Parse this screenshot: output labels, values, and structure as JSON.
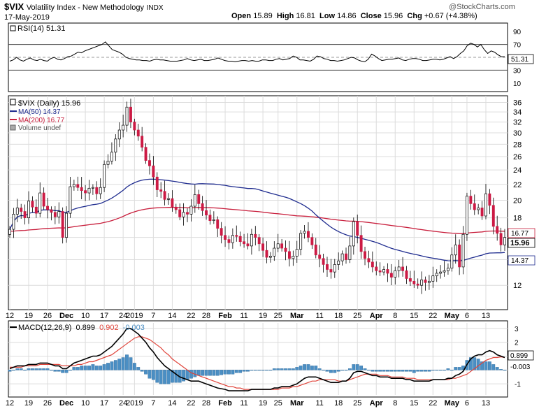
{
  "header": {
    "symbol": "$VIX",
    "name": "Volatility Index - New Methodology",
    "exchange": "INDX",
    "date": "17-May-2019",
    "watermark": "@StockCharts.com",
    "quote": {
      "open_label": "Open",
      "open": "15.89",
      "high_label": "High",
      "high": "16.81",
      "low_label": "Low",
      "low": "14.86",
      "close_label": "Close",
      "close": "15.96",
      "chg_label": "Chg",
      "chg": "+0.67 (+4.38%)"
    }
  },
  "colors": {
    "up": "#ffffff",
    "down": "#cc1a44",
    "candle_edge": "#000000",
    "ma50": "#1f2c8f",
    "ma200": "#c81e3c",
    "rsi": "#000000",
    "macd": "#000000",
    "signal": "#e0443a",
    "histogram": "#4b8fc4",
    "grid": "#dcdcdc"
  },
  "chart_data": [
    {
      "type": "line",
      "panel": "RSI",
      "legend": "RSI(14) 51.31",
      "ylim": [
        0,
        100
      ],
      "y_ticks": [
        "90",
        "70",
        "50",
        "30",
        "10"
      ],
      "reference_lines": [
        70,
        30
      ],
      "last_value_label": "51.31",
      "series": [
        {
          "name": "RSI(14)",
          "values": [
            44,
            46,
            50,
            46,
            44,
            47,
            49,
            46,
            45,
            47,
            45,
            44,
            48,
            50,
            47,
            46,
            48,
            51,
            52,
            55,
            58,
            57,
            60,
            62,
            64,
            66,
            68,
            70,
            74,
            68,
            62,
            60,
            58,
            55,
            50,
            48,
            47,
            46,
            46,
            45,
            45,
            44,
            46,
            47,
            46,
            46,
            45,
            44,
            44,
            44,
            45,
            46,
            48,
            46,
            45,
            46,
            47,
            45,
            45,
            46,
            47,
            49,
            47,
            45,
            44,
            44,
            43,
            44,
            45,
            45,
            44,
            45,
            44,
            44,
            46,
            46,
            45,
            45,
            47,
            48,
            46,
            47,
            48,
            52,
            50,
            46,
            46,
            45,
            44,
            47,
            52,
            51,
            48,
            47,
            45,
            45,
            44,
            45,
            46,
            48,
            50,
            49,
            46,
            44,
            43,
            47,
            55,
            52,
            48,
            45,
            46,
            47,
            47,
            48,
            49,
            46,
            45,
            47,
            48,
            48,
            47,
            45,
            45,
            46,
            47,
            47,
            46,
            47,
            49,
            51,
            48,
            51,
            56,
            60,
            68,
            72,
            70,
            66,
            70,
            62,
            56,
            60,
            58,
            54,
            51,
            51
          ]
        }
      ]
    },
    {
      "type": "candlestick",
      "panel": "Price",
      "legend": [
        "$VIX (Daily) 15.96",
        "MA(50) 14.37",
        "MA(200) 16.77",
        "Volume undef"
      ],
      "y_scale": "log",
      "y_ticks": [
        36,
        34,
        32,
        30,
        28,
        26,
        24,
        22,
        20,
        18,
        16,
        14,
        12
      ],
      "ylim": [
        10.5,
        37
      ],
      "x_tick_labels": [
        "12",
        "19",
        "26",
        "Dec",
        "10",
        "17",
        "24",
        "2019",
        "7",
        "14",
        "22",
        "28",
        "Feb",
        "11",
        "19",
        "25",
        "Mar",
        "11",
        "18",
        "25",
        "Apr",
        "8",
        "15",
        "22",
        "May",
        "6",
        "13"
      ],
      "x_tick_index": [
        0,
        5,
        10,
        15,
        20,
        25,
        30,
        33,
        38,
        43,
        48,
        52,
        57,
        62,
        67,
        71,
        76,
        82,
        87,
        92,
        97,
        102,
        107,
        112,
        117,
        121,
        126
      ],
      "price_labels": {
        "ma200": "16.77",
        "close": "15.96",
        "ma50": "14.37"
      },
      "close": [
        16.8,
        18.4,
        19.1,
        18.7,
        18.0,
        19.9,
        19.2,
        18.5,
        20.9,
        19.3,
        18.9,
        18.6,
        18.1,
        18.7,
        16.0,
        18.5,
        21.7,
        22.0,
        21.6,
        21.2,
        20.9,
        21.5,
        21.6,
        20.8,
        21.6,
        24.8,
        25.3,
        26.7,
        28.9,
        30.5,
        31.4,
        35.0,
        32.0,
        30.5,
        29.4,
        27.5,
        25.4,
        24.6,
        23.0,
        21.3,
        21.1,
        20.1,
        20.2,
        19.2,
        18.9,
        18.1,
        18.6,
        18.4,
        19.3,
        20.7,
        19.6,
        18.8,
        18.3,
        17.7,
        17.8,
        16.9,
        16.2,
        15.8,
        15.5,
        16.2,
        16.1,
        15.6,
        15.4,
        15.2,
        16.3,
        16.0,
        15.4,
        14.8,
        14.2,
        14.3,
        15.0,
        15.4,
        15.0,
        14.7,
        14.1,
        14.3,
        14.9,
        16.4,
        16.6,
        16.0,
        15.3,
        14.4,
        14.1,
        13.6,
        13.2,
        13.0,
        13.6,
        13.9,
        14.5,
        14.0,
        15.2,
        17.6,
        16.2,
        14.7,
        14.1,
        13.8,
        13.4,
        13.1,
        13.0,
        13.2,
        12.9,
        12.6,
        13.1,
        13.4,
        13.1,
        12.5,
        12.3,
        12.1,
        12.0,
        12.4,
        12.2,
        12.3,
        12.7,
        12.9,
        13.0,
        13.1,
        13.3,
        14.4,
        15.3,
        13.4,
        16.3,
        20.5,
        19.6,
        18.9,
        19.1,
        18.2,
        20.8,
        19.4,
        17.1,
        16.4,
        15.3,
        16.0
      ]
    },
    {
      "type": "line",
      "panel": "MACD",
      "legend": {
        "name": "MACD(12,26,9)",
        "macd": "0.899",
        "signal": "0.902",
        "hist": "-0.003"
      },
      "ylim": [
        -1.8,
        3.4
      ],
      "y_ticks": [
        "3",
        "2",
        "1",
        "-1"
      ],
      "value_labels": {
        "macd": "0.899",
        "hist": "-0.003"
      },
      "series": [
        {
          "name": "MACD",
          "values": [
            0.1,
            0.2,
            0.3,
            0.3,
            0.3,
            0.4,
            0.4,
            0.4,
            0.5,
            0.5,
            0.5,
            0.4,
            0.3,
            0.3,
            0.1,
            0.1,
            0.3,
            0.5,
            0.6,
            0.7,
            0.8,
            0.9,
            1.0,
            1.0,
            1.1,
            1.3,
            1.5,
            1.7,
            2.0,
            2.3,
            2.6,
            3.0,
            3.0,
            2.8,
            2.6,
            2.3,
            2.0,
            1.6,
            1.3,
            0.9,
            0.6,
            0.3,
            0.1,
            -0.1,
            -0.3,
            -0.5,
            -0.6,
            -0.7,
            -0.8,
            -0.8,
            -0.8,
            -0.9,
            -1.0,
            -1.1,
            -1.2,
            -1.3,
            -1.35,
            -1.4,
            -1.5,
            -1.5,
            -1.5,
            -1.5,
            -1.5,
            -1.5,
            -1.4,
            -1.4,
            -1.4,
            -1.4,
            -1.4,
            -1.4,
            -1.3,
            -1.3,
            -1.2,
            -1.2,
            -1.2,
            -1.1,
            -1.0,
            -0.8,
            -0.6,
            -0.5,
            -0.5,
            -0.5,
            -0.6,
            -0.7,
            -0.8,
            -0.9,
            -0.9,
            -0.9,
            -0.8,
            -0.8,
            -0.6,
            -0.2,
            -0.1,
            -0.1,
            -0.2,
            -0.3,
            -0.4,
            -0.4,
            -0.5,
            -0.5,
            -0.5,
            -0.6,
            -0.6,
            -0.6,
            -0.6,
            -0.7,
            -0.7,
            -0.8,
            -0.8,
            -0.8,
            -0.8,
            -0.8,
            -0.7,
            -0.7,
            -0.7,
            -0.7,
            -0.6,
            -0.6,
            -0.4,
            -0.3,
            -0.1,
            0.4,
            0.8,
            1.0,
            1.1,
            1.1,
            1.3,
            1.4,
            1.3,
            1.1,
            1.0,
            0.9
          ]
        },
        {
          "name": "Signal",
          "values": [
            0.2,
            0.2,
            0.2,
            0.2,
            0.3,
            0.3,
            0.3,
            0.3,
            0.4,
            0.4,
            0.4,
            0.4,
            0.4,
            0.4,
            0.3,
            0.3,
            0.3,
            0.3,
            0.4,
            0.4,
            0.5,
            0.6,
            0.6,
            0.7,
            0.8,
            0.9,
            1.0,
            1.1,
            1.3,
            1.5,
            1.7,
            1.9,
            2.1,
            2.3,
            2.4,
            2.4,
            2.3,
            2.2,
            2.0,
            1.8,
            1.6,
            1.3,
            1.1,
            0.8,
            0.6,
            0.4,
            0.2,
            0.0,
            -0.2,
            -0.3,
            -0.4,
            -0.5,
            -0.6,
            -0.7,
            -0.8,
            -0.9,
            -1.0,
            -1.1,
            -1.2,
            -1.2,
            -1.3,
            -1.3,
            -1.4,
            -1.4,
            -1.4,
            -1.4,
            -1.4,
            -1.4,
            -1.4,
            -1.4,
            -1.4,
            -1.4,
            -1.3,
            -1.3,
            -1.3,
            -1.2,
            -1.2,
            -1.1,
            -1.0,
            -0.9,
            -0.8,
            -0.8,
            -0.7,
            -0.7,
            -0.7,
            -0.7,
            -0.7,
            -0.8,
            -0.8,
            -0.8,
            -0.7,
            -0.6,
            -0.5,
            -0.4,
            -0.3,
            -0.3,
            -0.3,
            -0.3,
            -0.4,
            -0.4,
            -0.4,
            -0.5,
            -0.5,
            -0.5,
            -0.5,
            -0.6,
            -0.6,
            -0.6,
            -0.7,
            -0.7,
            -0.7,
            -0.7,
            -0.7,
            -0.7,
            -0.7,
            -0.7,
            -0.7,
            -0.6,
            -0.6,
            -0.5,
            -0.4,
            -0.3,
            -0.1,
            0.1,
            0.3,
            0.5,
            0.7,
            0.8,
            0.9,
            0.9,
            0.95,
            0.9
          ]
        }
      ]
    }
  ]
}
